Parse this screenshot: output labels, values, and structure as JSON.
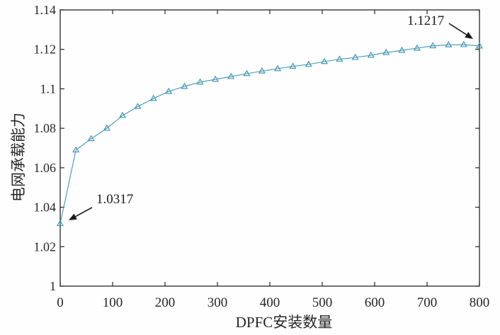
{
  "figure": {
    "background": "#fefefe"
  },
  "chart_data": {
    "type": "line",
    "title": "",
    "xlabel": "DPFC安装数量",
    "ylabel": "电网承载能力",
    "xlim": [
      0,
      800
    ],
    "ylim": [
      1,
      1.14
    ],
    "xticks": [
      0,
      100,
      200,
      300,
      400,
      500,
      600,
      700,
      800
    ],
    "xtick_labels": [
      "0",
      "100",
      "200",
      "300",
      "400",
      "500",
      "600",
      "700",
      "800"
    ],
    "yticks": [
      1,
      1.02,
      1.04,
      1.06,
      1.08,
      1.1,
      1.12,
      1.14
    ],
    "ytick_labels": [
      "1",
      "1.02",
      "1.04",
      "1.06",
      "1.08",
      "1.1",
      "1.12",
      "1.14"
    ],
    "grid": false,
    "legend": "none",
    "line_color": "#4296b4",
    "marker": "triangle-up",
    "marker_fill": "none",
    "axis_color": "#262626",
    "annotation_color": "#1a1a1a",
    "series": [
      {
        "name": "电网承载能力",
        "x": [
          0,
          30,
          59,
          89,
          119,
          148,
          178,
          207,
          237,
          267,
          296,
          326,
          356,
          385,
          415,
          444,
          474,
          504,
          533,
          563,
          593,
          622,
          652,
          681,
          711,
          741,
          770,
          800
        ],
        "y": [
          1.0317,
          1.069,
          1.0747,
          1.08,
          1.0865,
          1.091,
          1.0951,
          1.0987,
          1.1012,
          1.1034,
          1.1048,
          1.1062,
          1.1077,
          1.109,
          1.1102,
          1.1114,
          1.1124,
          1.1138,
          1.115,
          1.1159,
          1.117,
          1.1184,
          1.1195,
          1.1206,
          1.1218,
          1.1223,
          1.1224,
          1.1217
        ]
      }
    ],
    "annotations": [
      {
        "id": "first-point",
        "text": "1.0317",
        "target_x": 0,
        "target_y": 1.0317
      },
      {
        "id": "last-point",
        "text": "1.1217",
        "target_x": 800,
        "target_y": 1.1217
      }
    ]
  }
}
